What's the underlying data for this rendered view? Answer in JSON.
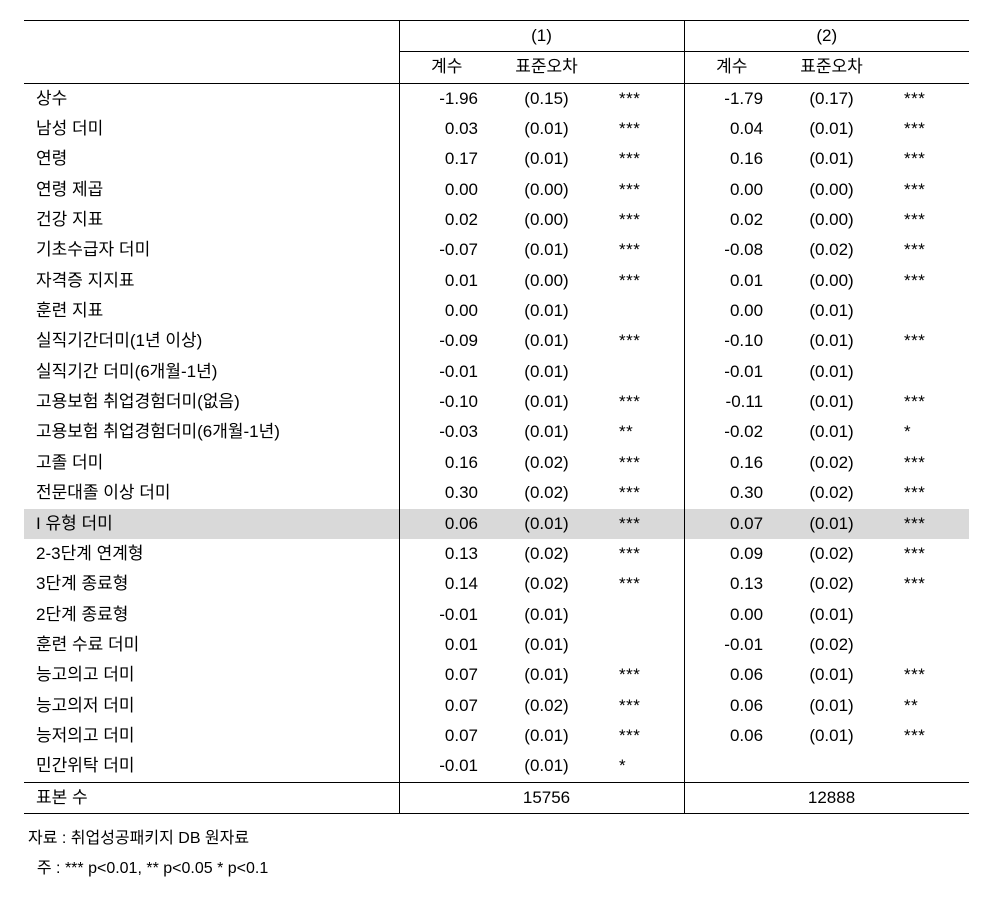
{
  "header": {
    "model1": "(1)",
    "model2": "(2)",
    "coef": "계수",
    "se": "표준오차"
  },
  "rows": [
    {
      "label": "상수",
      "c1": "-1.96",
      "s1": "(0.15)",
      "g1": "***",
      "c2": "-1.79",
      "s2": "(0.17)",
      "g2": "***",
      "hl": false
    },
    {
      "label": "남성 더미",
      "c1": "0.03",
      "s1": "(0.01)",
      "g1": "***",
      "c2": "0.04",
      "s2": "(0.01)",
      "g2": "***",
      "hl": false
    },
    {
      "label": "연령",
      "c1": "0.17",
      "s1": "(0.01)",
      "g1": "***",
      "c2": "0.16",
      "s2": "(0.01)",
      "g2": "***",
      "hl": false
    },
    {
      "label": "연령 제곱",
      "c1": "0.00",
      "s1": "(0.00)",
      "g1": "***",
      "c2": "0.00",
      "s2": "(0.00)",
      "g2": "***",
      "hl": false
    },
    {
      "label": "건강 지표",
      "c1": "0.02",
      "s1": "(0.00)",
      "g1": "***",
      "c2": "0.02",
      "s2": "(0.00)",
      "g2": "***",
      "hl": false
    },
    {
      "label": "기초수급자 더미",
      "c1": "-0.07",
      "s1": "(0.01)",
      "g1": "***",
      "c2": "-0.08",
      "s2": "(0.02)",
      "g2": "***",
      "hl": false
    },
    {
      "label": "자격증 지지표",
      "c1": "0.01",
      "s1": "(0.00)",
      "g1": "***",
      "c2": "0.01",
      "s2": "(0.00)",
      "g2": "***",
      "hl": false
    },
    {
      "label": "훈련 지표",
      "c1": "0.00",
      "s1": "(0.01)",
      "g1": "",
      "c2": "0.00",
      "s2": "(0.01)",
      "g2": "",
      "hl": false
    },
    {
      "label": "실직기간더미(1년 이상)",
      "c1": "-0.09",
      "s1": "(0.01)",
      "g1": "***",
      "c2": "-0.10",
      "s2": "(0.01)",
      "g2": "***",
      "hl": false
    },
    {
      "label": "실직기간 더미(6개월-1년)",
      "c1": "-0.01",
      "s1": "(0.01)",
      "g1": "",
      "c2": "-0.01",
      "s2": "(0.01)",
      "g2": "",
      "hl": false
    },
    {
      "label": "고용보험 취업경험더미(없음)",
      "c1": "-0.10",
      "s1": "(0.01)",
      "g1": "***",
      "c2": "-0.11",
      "s2": "(0.01)",
      "g2": "***",
      "hl": false
    },
    {
      "label": "고용보험 취업경험더미(6개월-1년)",
      "c1": "-0.03",
      "s1": "(0.01)",
      "g1": "**",
      "c2": "-0.02",
      "s2": "(0.01)",
      "g2": "*",
      "hl": false
    },
    {
      "label": "고졸 더미",
      "c1": "0.16",
      "s1": "(0.02)",
      "g1": "***",
      "c2": "0.16",
      "s2": "(0.02)",
      "g2": "***",
      "hl": false
    },
    {
      "label": "전문대졸 이상 더미",
      "c1": "0.30",
      "s1": "(0.02)",
      "g1": "***",
      "c2": "0.30",
      "s2": "(0.02)",
      "g2": "***",
      "hl": false
    },
    {
      "label": "I 유형 더미",
      "c1": "0.06",
      "s1": "(0.01)",
      "g1": "***",
      "c2": "0.07",
      "s2": "(0.01)",
      "g2": "***",
      "hl": true
    },
    {
      "label": "2-3단계 연계형",
      "c1": "0.13",
      "s1": "(0.02)",
      "g1": "***",
      "c2": "0.09",
      "s2": "(0.02)",
      "g2": "***",
      "hl": false
    },
    {
      "label": "3단계 종료형",
      "c1": "0.14",
      "s1": "(0.02)",
      "g1": "***",
      "c2": "0.13",
      "s2": "(0.02)",
      "g2": "***",
      "hl": false
    },
    {
      "label": "2단계 종료형",
      "c1": "-0.01",
      "s1": "(0.01)",
      "g1": "",
      "c2": "0.00",
      "s2": "(0.01)",
      "g2": "",
      "hl": false
    },
    {
      "label": "훈련 수료 더미",
      "c1": "0.01",
      "s1": "(0.01)",
      "g1": "",
      "c2": "-0.01",
      "s2": "(0.02)",
      "g2": "",
      "hl": false
    },
    {
      "label": "능고의고 더미",
      "c1": "0.07",
      "s1": "(0.01)",
      "g1": "***",
      "c2": "0.06",
      "s2": "(0.01)",
      "g2": "***",
      "hl": false
    },
    {
      "label": "능고의저 더미",
      "c1": "0.07",
      "s1": "(0.02)",
      "g1": "***",
      "c2": "0.06",
      "s2": "(0.01)",
      "g2": "**",
      "hl": false
    },
    {
      "label": "능저의고 더미",
      "c1": "0.07",
      "s1": "(0.01)",
      "g1": "***",
      "c2": "0.06",
      "s2": "(0.01)",
      "g2": "***",
      "hl": false
    },
    {
      "label": "민간위탁 더미",
      "c1": "-0.01",
      "s1": "(0.01)",
      "g1": "*",
      "c2": "",
      "s2": "",
      "g2": "",
      "hl": false
    }
  ],
  "footer": {
    "label": "표본 수",
    "n1": "15756",
    "n2": "12888"
  },
  "notes": {
    "line1": "자료 : 취업성공패키지 DB 원자료",
    "line2": "  주 : *** p<0.01, ** p<0.05 * p<0.1"
  }
}
